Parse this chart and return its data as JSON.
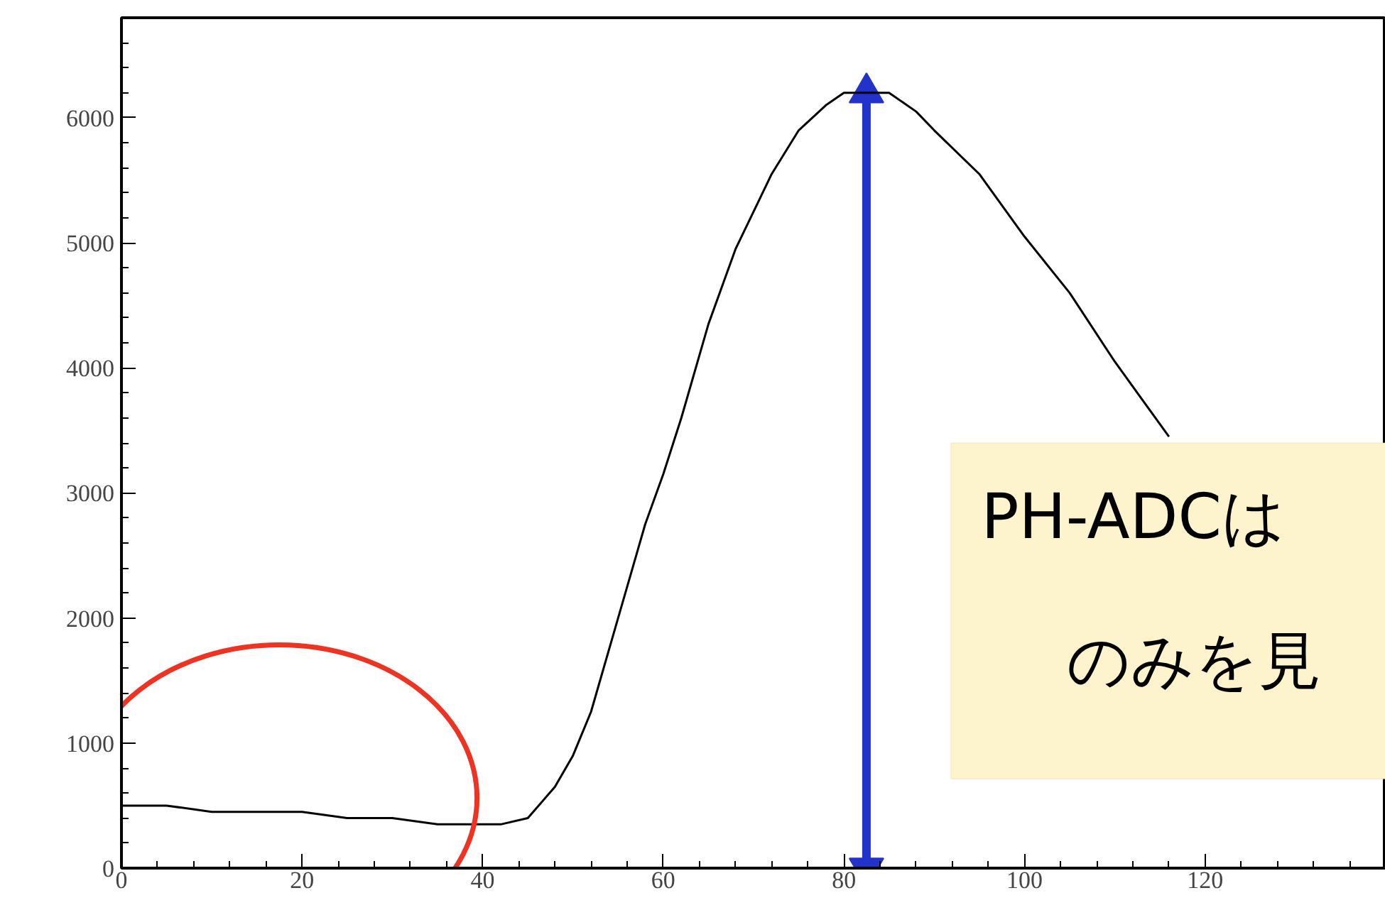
{
  "chart_data": {
    "type": "line",
    "x": [
      0,
      5,
      10,
      15,
      20,
      25,
      30,
      35,
      40,
      42,
      45,
      48,
      50,
      52,
      55,
      58,
      60,
      62,
      65,
      68,
      70,
      72,
      75,
      78,
      80,
      82.5,
      85,
      88,
      90,
      95,
      100,
      105,
      110,
      113,
      116
    ],
    "series": [
      {
        "color": "#000000",
        "values": [
          500,
          500,
          450,
          450,
          450,
          400,
          400,
          350,
          350,
          350,
          400,
          650,
          900,
          1250,
          2000,
          2750,
          3150,
          3600,
          4350,
          4950,
          5250,
          5550,
          5900,
          6100,
          6200,
          6200,
          6200,
          6050,
          5900,
          5550,
          5050,
          4600,
          4050,
          3750,
          3450
        ]
      },
      {
        "type": "line",
        "marker": "triangle",
        "color": "#2233cc",
        "x": [
          82.5,
          82.5
        ],
        "values": [
          0,
          6200
        ]
      }
    ],
    "xlim": [
      0,
      140
    ],
    "ylim": [
      0,
      6800
    ],
    "xticks": [
      0,
      20,
      40,
      60,
      80,
      100,
      120
    ],
    "yticks": [
      0,
      1000,
      2000,
      3000,
      4000,
      5000,
      6000
    ],
    "grid": false,
    "marker": "none",
    "line_style": "solid",
    "annotations": [
      "PH-ADCは",
      "のみを見"
    ]
  }
}
